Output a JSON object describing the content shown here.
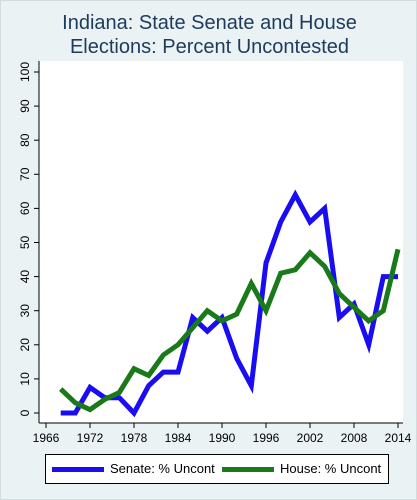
{
  "chart_data": {
    "type": "line",
    "title": [
      "Indiana: State Senate and House",
      "Elections: Percent Uncontested"
    ],
    "xlabel": "",
    "ylabel": "",
    "xlim": [
      1966,
      2014
    ],
    "ylim": [
      0,
      100
    ],
    "xticks": [
      1966,
      1972,
      1978,
      1984,
      1990,
      1996,
      2002,
      2008,
      2014
    ],
    "yticks": [
      0,
      10,
      20,
      30,
      40,
      50,
      60,
      70,
      80,
      90,
      100
    ],
    "grid": false,
    "legend_position": "bottom",
    "series": [
      {
        "name": "Senate: % Uncont",
        "color": "#1a0df2",
        "x": [
          1968,
          1970,
          1972,
          1974,
          1976,
          1978,
          1980,
          1982,
          1984,
          1986,
          1988,
          1990,
          1992,
          1994,
          1996,
          1998,
          2000,
          2002,
          2004,
          2006,
          2008,
          2010,
          2012,
          2014
        ],
        "y": [
          0,
          0,
          7.5,
          4.5,
          4.5,
          0,
          8,
          12,
          12,
          28,
          24,
          28,
          16,
          8,
          44,
          56,
          64,
          56,
          60,
          28,
          32,
          20,
          40,
          40
        ]
      },
      {
        "name": "House: % Uncont",
        "color": "#1a7a1a",
        "x": [
          1968,
          1970,
          1972,
          1974,
          1976,
          1978,
          1980,
          1982,
          1984,
          1986,
          1988,
          1990,
          1992,
          1994,
          1996,
          1998,
          2000,
          2002,
          2004,
          2006,
          2008,
          2010,
          2012,
          2014
        ],
        "y": [
          7,
          3,
          1,
          4,
          6,
          13,
          11,
          17,
          20,
          25,
          30,
          27,
          29,
          38,
          30,
          41,
          42,
          47,
          43,
          35,
          31,
          27,
          30,
          48
        ]
      }
    ]
  }
}
